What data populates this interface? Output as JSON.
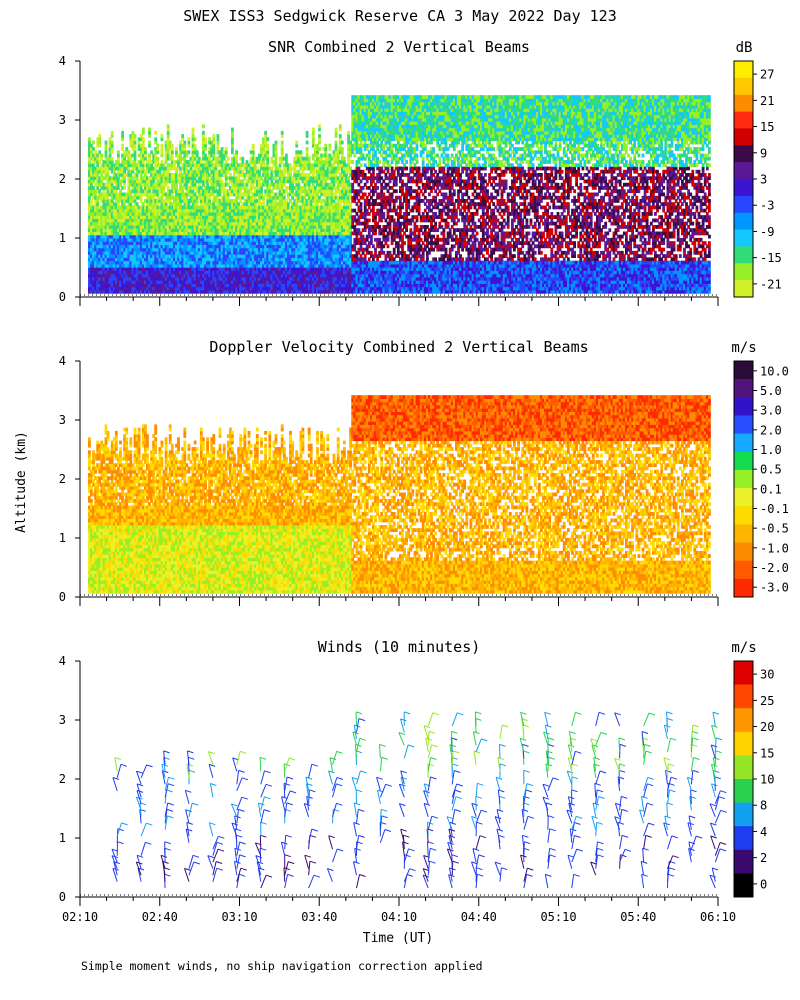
{
  "figure": {
    "title": "SWEX ISS3 Sedgwick Reserve CA   3 May 2022 Day 123",
    "ylabel": "Altitude (km)",
    "xlabel": "Time (UT)",
    "footnote": "Simple moment winds, no ship navigation correction applied"
  },
  "chart_data": [
    {
      "type": "heatmap",
      "title": "SNR Combined 2 Vertical Beams",
      "colorbar_unit": "dB",
      "colorbar_ticks": [
        "27",
        "21",
        "15",
        "9",
        "3",
        "-3",
        "-9",
        "-15",
        "-21"
      ],
      "colorbar_colors": [
        "#ffee00",
        "#ffc800",
        "#ff8c00",
        "#ff2a10",
        "#d00000",
        "#3c0a46",
        "#5a1896",
        "#3c14d2",
        "#2846ff",
        "#0096ff",
        "#14c8ff",
        "#32dc78",
        "#96f028",
        "#d2f028"
      ],
      "x_range": [
        "02:10",
        "06:10"
      ],
      "ylim": [
        0,
        4
      ]
    },
    {
      "type": "heatmap",
      "title": "Doppler Velocity Combined 2 Vertical Beams",
      "colorbar_unit": "m/s",
      "colorbar_ticks": [
        "10.0",
        "5.0",
        "3.0",
        "2.0",
        "1.0",
        "0.5",
        "0.1",
        "-0.1",
        "-0.5",
        "-1.0",
        "-2.0",
        "-3.0"
      ],
      "colorbar_colors": [
        "#2a0a36",
        "#50147a",
        "#3214c8",
        "#2850ff",
        "#14aaff",
        "#14dc50",
        "#96f028",
        "#ecf028",
        "#ffdc00",
        "#ffb400",
        "#ff8c00",
        "#ff5a00",
        "#ff2a00"
      ],
      "x_range": [
        "02:10",
        "06:10"
      ],
      "ylim": [
        0,
        4
      ]
    },
    {
      "type": "wind barbs",
      "title": "Winds (10 minutes)",
      "colorbar_unit": "m/s",
      "colorbar_ticks": [
        "30",
        "25",
        "20",
        "15",
        "10",
        "8",
        "4",
        "2",
        "0"
      ],
      "colorbar_colors": [
        "#e00000",
        "#ff4800",
        "#ff9600",
        "#ffd200",
        "#96e628",
        "#28d250",
        "#14a0f0",
        "#1e3cf0",
        "#3c0a6e",
        "#000000"
      ],
      "x_ticks": [
        "02:10",
        "02:40",
        "03:10",
        "03:40",
        "04:10",
        "04:40",
        "05:10",
        "05:40",
        "06:10"
      ],
      "y_ticks": [
        "0",
        "1",
        "2",
        "3",
        "4"
      ],
      "x_range": [
        "02:10",
        "06:10"
      ],
      "ylim": [
        0,
        4
      ]
    }
  ]
}
